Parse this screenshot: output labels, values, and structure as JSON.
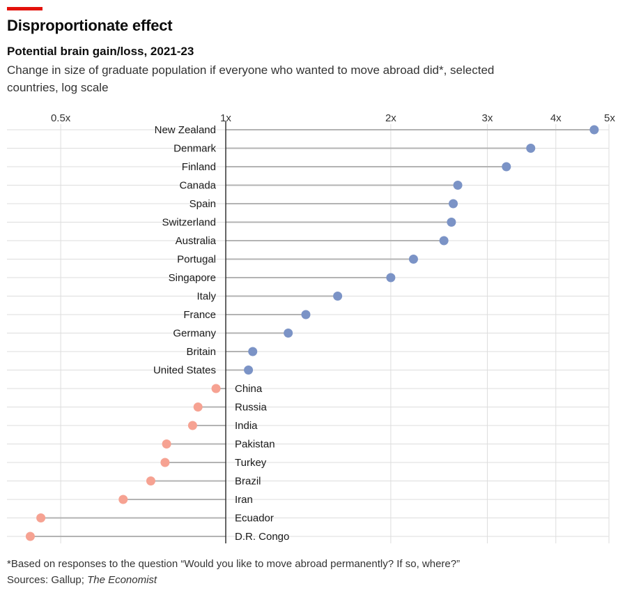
{
  "header": {
    "title": "Disproportionate effect",
    "subtitle": "Potential brain gain/loss, 2021-23",
    "description": "Change in size of graduate population if everyone who wanted to move abroad did*, selected countries, log scale"
  },
  "footer": {
    "footnote": "*Based on responses to the question “Would you like to move abroad permanently? If so, where?”",
    "sources_prefix": "Sources: Gallup; ",
    "sources_italic": "The Economist"
  },
  "colors": {
    "gain": "#7b93c6",
    "loss": "#f6a292",
    "stem": "#b3b3b3",
    "axis": "#333333",
    "grid": "#dddddd",
    "accent": "#e3120b"
  },
  "chart_data": {
    "type": "scatter",
    "scale": "log",
    "xlim": [
      0.4,
      5
    ],
    "baseline": 1,
    "ticks": [
      {
        "value": 0.5,
        "label": "0.5x"
      },
      {
        "value": 1,
        "label": "1x"
      },
      {
        "value": 2,
        "label": "2x"
      },
      {
        "value": 3,
        "label": "3x"
      },
      {
        "value": 4,
        "label": "4x"
      },
      {
        "value": 5,
        "label": "5x"
      }
    ],
    "grid": true,
    "points": [
      {
        "country": "New Zealand",
        "value": 4.7
      },
      {
        "country": "Denmark",
        "value": 3.6
      },
      {
        "country": "Finland",
        "value": 3.25
      },
      {
        "country": "Canada",
        "value": 2.65
      },
      {
        "country": "Spain",
        "value": 2.6
      },
      {
        "country": "Switzerland",
        "value": 2.58
      },
      {
        "country": "Australia",
        "value": 2.5
      },
      {
        "country": "Portugal",
        "value": 2.2
      },
      {
        "country": "Singapore",
        "value": 2.0
      },
      {
        "country": "Italy",
        "value": 1.6
      },
      {
        "country": "France",
        "value": 1.4
      },
      {
        "country": "Germany",
        "value": 1.3
      },
      {
        "country": "Britain",
        "value": 1.12
      },
      {
        "country": "United States",
        "value": 1.1
      },
      {
        "country": "China",
        "value": 0.96
      },
      {
        "country": "Russia",
        "value": 0.89
      },
      {
        "country": "India",
        "value": 0.87
      },
      {
        "country": "Pakistan",
        "value": 0.78
      },
      {
        "country": "Turkey",
        "value": 0.775
      },
      {
        "country": "Brazil",
        "value": 0.73
      },
      {
        "country": "Iran",
        "value": 0.65
      },
      {
        "country": "Ecuador",
        "value": 0.46
      },
      {
        "country": "D.R. Congo",
        "value": 0.44
      }
    ]
  }
}
